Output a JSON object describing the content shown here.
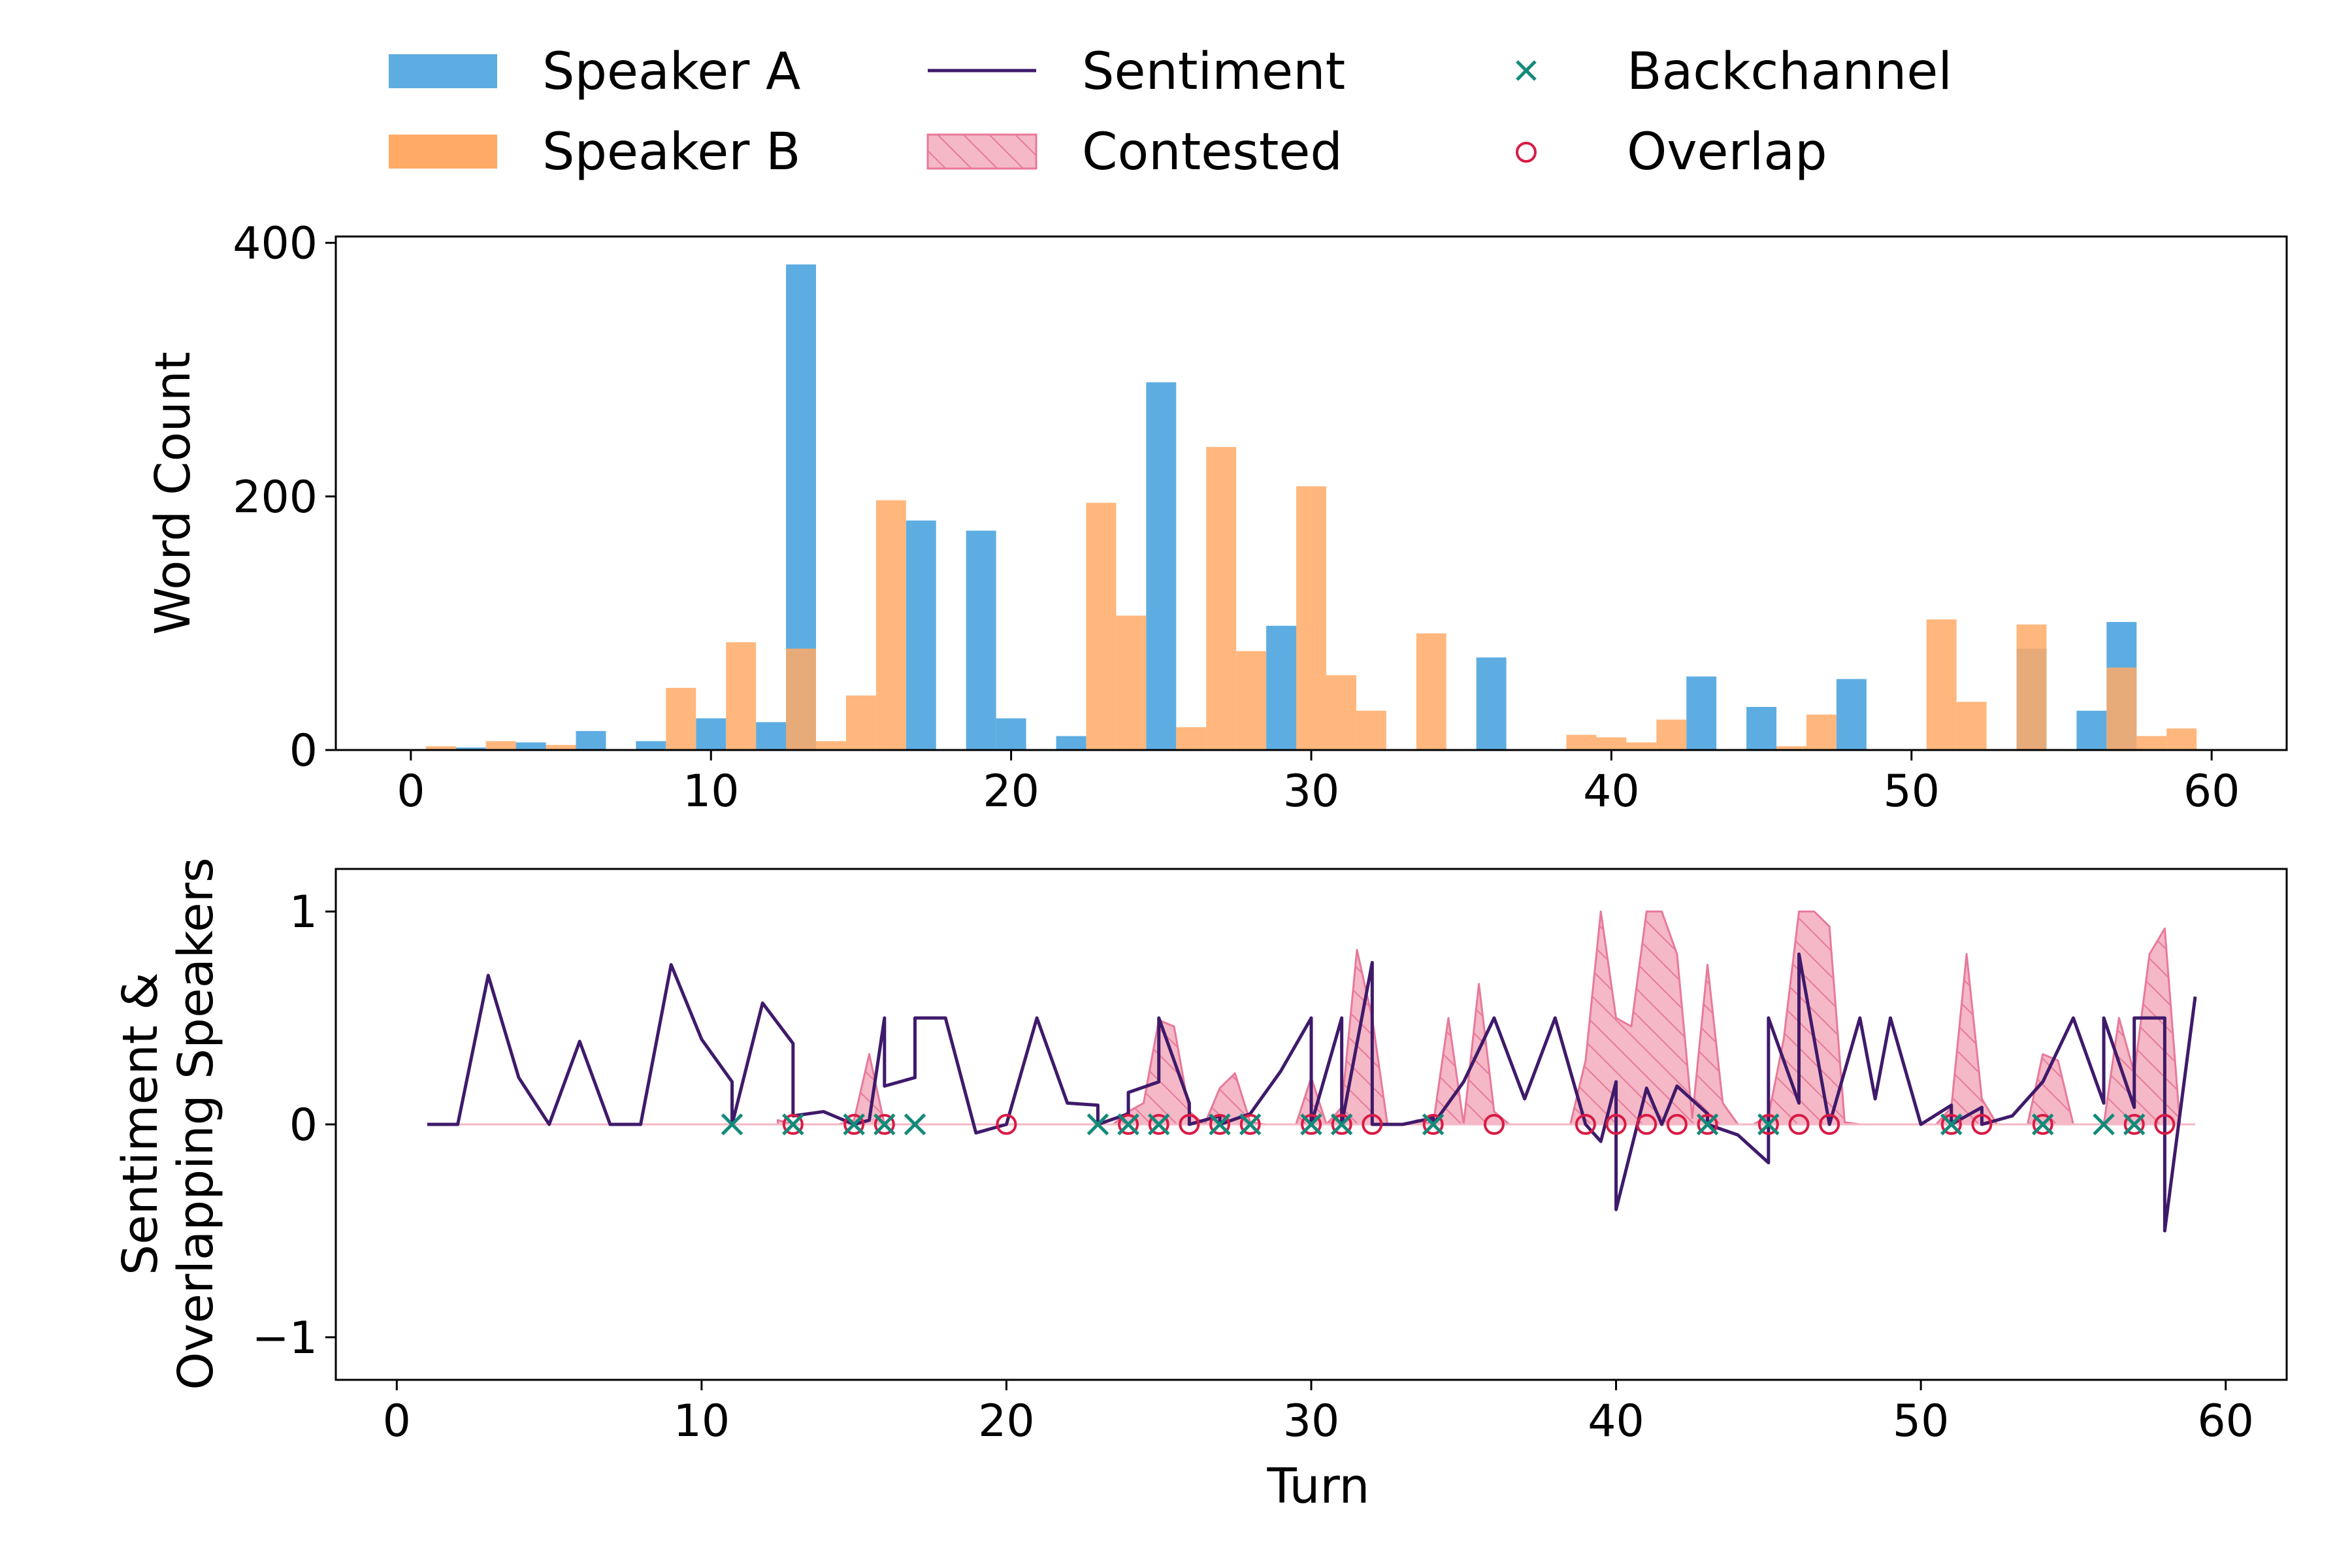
{
  "chart_data": [
    {
      "type": "bar",
      "title": "",
      "xlabel": "",
      "ylabel": "Word Count",
      "xlim": [
        -2.5,
        62.5
      ],
      "ylim": [
        0,
        405
      ],
      "xticks": [
        0,
        10,
        20,
        30,
        40,
        50,
        60
      ],
      "yticks": [
        0,
        200,
        400
      ],
      "series": [
        {
          "name": "Speaker A",
          "color": "#5DADE2",
          "x": [
            2,
            4,
            6,
            8,
            10,
            12,
            13,
            17,
            19,
            20,
            22,
            25,
            29,
            36,
            43,
            45,
            48,
            54,
            56,
            57
          ],
          "values": [
            2,
            6,
            15,
            7,
            25,
            22,
            383,
            181,
            173,
            25,
            11,
            290,
            98,
            73,
            58,
            34,
            56,
            80,
            31,
            101
          ]
        },
        {
          "name": "Speaker B",
          "color": "#FFAA66",
          "x": [
            1,
            3,
            5,
            9,
            11,
            13,
            14,
            15,
            16,
            23,
            24,
            26,
            27,
            28,
            30,
            31,
            32,
            34,
            39,
            40,
            41,
            42,
            46,
            47,
            51,
            52,
            54,
            57,
            58,
            59
          ],
          "values": [
            3,
            7,
            4,
            49,
            85,
            80,
            7,
            43,
            197,
            195,
            106,
            18,
            239,
            78,
            208,
            59,
            31,
            92,
            12,
            10,
            6,
            24,
            3,
            28,
            103,
            38,
            99,
            65,
            11,
            17
          ]
        }
      ]
    },
    {
      "type": "line",
      "title": "",
      "xlabel": "Turn",
      "ylabel": "Sentiment & Overlapping Speakers",
      "ylabel_lines": [
        "Sentiment &",
        "Overlapping Speakers"
      ],
      "xlim": [
        -2,
        62
      ],
      "ylim": [
        -1.2,
        1.2
      ],
      "xticks": [
        0,
        10,
        20,
        30,
        40,
        50,
        60
      ],
      "yticks": [
        -1,
        0,
        1
      ],
      "ytick_labels": [
        "−1",
        "0",
        "1"
      ],
      "sentiment": {
        "name": "Sentiment",
        "color": "#3F1A6B",
        "points": [
          [
            1,
            0
          ],
          [
            2,
            0
          ],
          [
            3,
            0.7
          ],
          [
            4,
            0.22
          ],
          [
            5,
            0
          ],
          [
            6,
            0.39
          ],
          [
            7,
            0
          ],
          [
            8,
            0
          ],
          [
            9,
            0.75
          ],
          [
            10,
            0.4
          ],
          [
            11,
            0.2
          ],
          [
            11,
            0
          ],
          [
            12,
            0.57
          ],
          [
            13,
            0.38
          ],
          [
            13,
            0.04
          ],
          [
            14,
            0.06
          ],
          [
            15,
            0
          ],
          [
            15.5,
            0.02
          ],
          [
            16,
            0.5
          ],
          [
            16,
            0.18
          ],
          [
            17,
            0.22
          ],
          [
            17,
            0.5
          ],
          [
            18,
            0.5
          ],
          [
            19,
            -0.04
          ],
          [
            20,
            0
          ],
          [
            21,
            0.5
          ],
          [
            22,
            0.1
          ],
          [
            23,
            0.09
          ],
          [
            23,
            0
          ],
          [
            24,
            0.05
          ],
          [
            24,
            0.15
          ],
          [
            25,
            0.2
          ],
          [
            25,
            0.5
          ],
          [
            26,
            0.1
          ],
          [
            26,
            0
          ],
          [
            27,
            0.04
          ],
          [
            27,
            0
          ],
          [
            28,
            0.05
          ],
          [
            29,
            0.25
          ],
          [
            30,
            0.5
          ],
          [
            30,
            0
          ],
          [
            31,
            0.5
          ],
          [
            31,
            0
          ],
          [
            32,
            0.76
          ],
          [
            32,
            0
          ],
          [
            33,
            0
          ],
          [
            34,
            0.03
          ],
          [
            34,
            0
          ],
          [
            35,
            0.2
          ],
          [
            36,
            0.5
          ],
          [
            37,
            0.12
          ],
          [
            38,
            0.5
          ],
          [
            39,
            0
          ],
          [
            39.5,
            -0.08
          ],
          [
            40,
            0.2
          ],
          [
            40,
            -0.4
          ],
          [
            41,
            0.17
          ],
          [
            41.5,
            0
          ],
          [
            42,
            0.18
          ],
          [
            43,
            0.05
          ],
          [
            43,
            0
          ],
          [
            44,
            -0.05
          ],
          [
            45,
            -0.18
          ],
          [
            45,
            0.5
          ],
          [
            46,
            0.1
          ],
          [
            46,
            0.8
          ],
          [
            47,
            0
          ],
          [
            48,
            0.5
          ],
          [
            48.5,
            0.12
          ],
          [
            49,
            0.5
          ],
          [
            50,
            0
          ],
          [
            51,
            0.09
          ],
          [
            51,
            0
          ],
          [
            52,
            0.08
          ],
          [
            52,
            0
          ],
          [
            53,
            0.04
          ],
          [
            54,
            0.2
          ],
          [
            55,
            0.5
          ],
          [
            56,
            0.1
          ],
          [
            56,
            0.5
          ],
          [
            57,
            0.08
          ],
          [
            57,
            0.5
          ],
          [
            58,
            0.5
          ],
          [
            58,
            -0.5
          ],
          [
            59,
            0.6
          ]
        ]
      },
      "contested": {
        "name": "Contested",
        "color": "#F4B8C6",
        "edge": "#E8799A",
        "x": [
          12.5,
          13,
          13.5,
          14,
          14.5,
          15,
          15.5,
          16,
          16.5,
          17,
          17.5,
          18,
          18.5,
          19,
          19.5,
          20,
          20.5,
          21,
          21.5,
          22,
          22.5,
          23,
          23.5,
          24,
          24.5,
          25,
          25.5,
          26,
          26.5,
          27,
          27.5,
          28,
          28.5,
          29,
          29.5,
          30,
          30.5,
          31,
          31.5,
          32,
          32.5,
          33,
          33.5,
          34,
          34.5,
          35,
          35.5,
          36,
          36.5,
          37,
          37.5,
          38,
          38.5,
          39,
          39.5,
          40,
          40.5,
          41,
          41.5,
          42,
          42.5,
          43,
          43.5,
          44,
          44.5,
          45,
          45.5,
          46,
          46.5,
          47,
          47.5,
          48,
          48.5,
          49,
          49.5,
          50,
          50.5,
          51,
          51.5,
          52,
          52.5,
          53,
          53.5,
          54,
          54.5,
          55,
          55.5,
          56,
          56.5,
          57,
          57.5,
          58,
          58.5
        ],
        "values": [
          0.02,
          0,
          0,
          0,
          0,
          0.02,
          0.33,
          0,
          0,
          0,
          0,
          0,
          0,
          0,
          0,
          0,
          0,
          0,
          0,
          0,
          0,
          0,
          0,
          0.06,
          0.1,
          0.49,
          0.46,
          0.06,
          0,
          0.17,
          0.24,
          0.01,
          0,
          0,
          0,
          0.22,
          0,
          0.08,
          0.82,
          0.5,
          0,
          0,
          0.02,
          0,
          0.5,
          0,
          0.66,
          0.06,
          0,
          0,
          0,
          0,
          0,
          0.3,
          1,
          0.5,
          0.46,
          1,
          1,
          0.8,
          0.03,
          0.75,
          0.1,
          0,
          0,
          0.04,
          0.4,
          1,
          1,
          0.93,
          0.01,
          0,
          0,
          0,
          0,
          0,
          0,
          0.08,
          0.8,
          0.12,
          0,
          0,
          0,
          0.33,
          0.3,
          0,
          0,
          0,
          0.5,
          0.24,
          0.8,
          0.92,
          0
        ]
      },
      "backchannel": {
        "name": "Backchannel",
        "color": "#138A7A",
        "x": [
          11,
          13,
          15,
          16,
          17,
          23,
          24,
          25,
          27,
          28,
          30,
          31,
          34,
          43,
          45,
          51,
          54,
          56,
          57
        ],
        "y": 0
      },
      "overlap": {
        "name": "Overlap",
        "color": "#D81B45",
        "x": [
          13,
          15,
          16,
          20,
          24,
          25,
          26,
          27,
          28,
          30,
          31,
          32,
          34,
          36,
          39,
          40,
          41,
          42,
          43,
          45,
          46,
          47,
          51,
          52,
          54,
          57,
          58
        ],
        "y": 0
      },
      "baseline_color": "#F4B8C6"
    }
  ]
}
